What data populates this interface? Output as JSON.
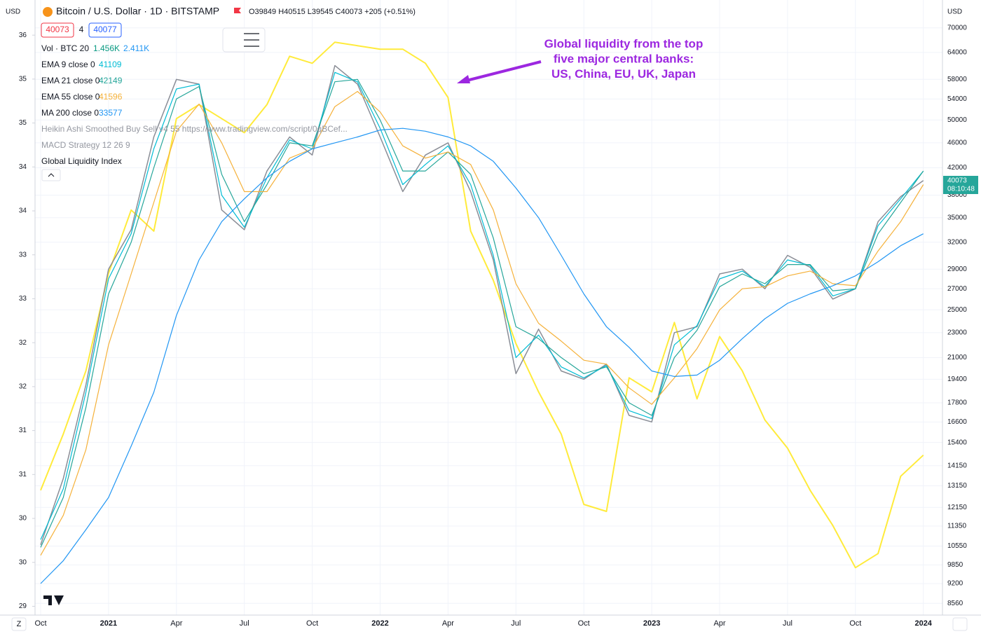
{
  "chart_data": {
    "type": "line",
    "title": "Bitcoin / U.S. Dollar · 1D · BITSTAMP",
    "ohlc": "O39849 H40515 L39545 C40073 +205 (+0.51%)",
    "sell_price": "40073",
    "spread": "4",
    "buy_price": "40077",
    "currency_right": "USD",
    "currency_left": "USD",
    "zoom_button": "Z",
    "last_price_label": "40073",
    "countdown": "08:10:48",
    "legend_extra": [
      {
        "text": "Vol · BTC 20",
        "v1": "1.456K",
        "v2": "2.411K"
      },
      {
        "text": "Heikin Ashi Smoothed Buy Sell v4 55 https://www.tradingview.com/script/0qBCef..."
      },
      {
        "text": "MACD Strategy 12 26 9"
      }
    ],
    "annotation": "Global liquidity from the top five major central banks: US, China, EU, UK, Japan",
    "log_scale": true,
    "grid": true,
    "x": [
      "2020-10",
      "2020-11",
      "2020-12",
      "2021-01",
      "2021-02",
      "2021-03",
      "2021-04",
      "2021-05",
      "2021-06",
      "2021-07",
      "2021-08",
      "2021-09",
      "2021-10",
      "2021-11",
      "2021-12",
      "2022-01",
      "2022-02",
      "2022-03",
      "2022-04",
      "2022-05",
      "2022-06",
      "2022-07",
      "2022-08",
      "2022-09",
      "2022-10",
      "2022-11",
      "2022-12",
      "2023-01",
      "2023-02",
      "2023-03",
      "2023-04",
      "2023-05",
      "2023-06",
      "2023-07",
      "2023-08",
      "2023-09",
      "2023-10",
      "2023-11",
      "2023-12",
      "2024-01"
    ],
    "xticks": [
      {
        "value": "2020-10",
        "label": "Oct"
      },
      {
        "value": "2021-01",
        "label": "2021"
      },
      {
        "value": "2021-04",
        "label": "Apr"
      },
      {
        "value": "2021-07",
        "label": "Jul"
      },
      {
        "value": "2021-10",
        "label": "Oct"
      },
      {
        "value": "2022-01",
        "label": "2022"
      },
      {
        "value": "2022-04",
        "label": "Apr"
      },
      {
        "value": "2022-07",
        "label": "Jul"
      },
      {
        "value": "2022-10",
        "label": "Oct"
      },
      {
        "value": "2023-01",
        "label": "2023"
      },
      {
        "value": "2023-04",
        "label": "Apr"
      },
      {
        "value": "2023-07",
        "label": "Jul"
      },
      {
        "value": "2023-10",
        "label": "Oct"
      },
      {
        "value": "2024-01",
        "label": "2024"
      }
    ],
    "ylim": [
      8200,
      77500
    ],
    "yticks": [
      70000,
      64000,
      58000,
      54000,
      50000,
      46000,
      42000,
      38000,
      35000,
      32000,
      29000,
      27000,
      25000,
      23000,
      21000,
      19400,
      17800,
      16600,
      15400,
      14150,
      13150,
      12150,
      11350,
      10550,
      9850,
      9200,
      8560
    ],
    "y2lim": [
      29.15,
      36.15
    ],
    "y2ticks": [
      {
        "value": 35.75,
        "label": "36"
      },
      {
        "value": 35.25,
        "label": "35"
      },
      {
        "value": 34.75,
        "label": "35"
      },
      {
        "value": 34.25,
        "label": "34"
      },
      {
        "value": 33.75,
        "label": "34"
      },
      {
        "value": 33.25,
        "label": "33"
      },
      {
        "value": 32.75,
        "label": "33"
      },
      {
        "value": 32.25,
        "label": "32"
      },
      {
        "value": 31.75,
        "label": "32"
      },
      {
        "value": 31.25,
        "label": "31"
      },
      {
        "value": 30.75,
        "label": "31"
      },
      {
        "value": 30.25,
        "label": "30"
      },
      {
        "value": 29.75,
        "label": "30"
      },
      {
        "value": 29.25,
        "label": "29"
      }
    ],
    "price": {
      "color": "#8a8d96",
      "values": [
        10600,
        13500,
        19000,
        29000,
        33500,
        47000,
        58000,
        57000,
        36000,
        33500,
        41500,
        47000,
        44000,
        61000,
        57000,
        47000,
        38500,
        44000,
        46000,
        38500,
        30000,
        19800,
        23300,
        20000,
        19400,
        20500,
        17000,
        16600,
        23000,
        23500,
        28500,
        29000,
        27000,
        30500,
        29200,
        26000,
        27000,
        34500,
        37800,
        40073
      ]
    },
    "series": [
      {
        "name": "Global Liquidity Index",
        "color": "#ffeb3b",
        "axis": "y2",
        "values": [
          30.57,
          31.21,
          31.93,
          33.04,
          33.76,
          33.52,
          34.8,
          34.96,
          34.8,
          34.64,
          34.96,
          35.51,
          35.43,
          35.67,
          35.63,
          35.59,
          35.59,
          35.43,
          35.04,
          33.52,
          32.96,
          32.24,
          31.69,
          31.21,
          30.41,
          30.33,
          31.85,
          31.69,
          32.48,
          31.61,
          32.32,
          31.93,
          31.37,
          31.05,
          30.57,
          30.17,
          29.69,
          29.85,
          30.73,
          30.97
        ]
      },
      {
        "name": "EMA 9 close 0",
        "last": "41109",
        "color": "#00bcd4",
        "values": [
          10800,
          13000,
          18500,
          28000,
          33000,
          45000,
          56000,
          57000,
          38000,
          33800,
          40500,
          46500,
          45000,
          59500,
          57500,
          48500,
          39500,
          42500,
          45500,
          39500,
          30500,
          21000,
          22800,
          20300,
          19500,
          20400,
          17300,
          16800,
          22000,
          23600,
          28000,
          28800,
          27200,
          30000,
          29400,
          26300,
          27000,
          34000,
          37500,
          41500
        ]
      },
      {
        "name": "EMA 21 close 0",
        "last": "42149",
        "color": "#26a69a",
        "values": [
          10500,
          12600,
          17500,
          26500,
          32000,
          42000,
          54000,
          56500,
          41000,
          34500,
          39500,
          46000,
          45500,
          57500,
          58000,
          50000,
          41500,
          41500,
          44500,
          41000,
          32500,
          23500,
          22500,
          21000,
          19800,
          20300,
          17800,
          17000,
          21000,
          23200,
          27200,
          28500,
          27500,
          29500,
          29500,
          26800,
          27000,
          33000,
          37000,
          41500
        ]
      },
      {
        "name": "EMA 55 close 0",
        "last": "41596",
        "color": "#f5b13a",
        "values": [
          10200,
          11800,
          15000,
          22000,
          28500,
          37000,
          48000,
          53000,
          46000,
          38500,
          38500,
          43500,
          45000,
          52500,
          55500,
          51500,
          45500,
          43500,
          44500,
          42500,
          36000,
          27500,
          23800,
          22300,
          20800,
          20500,
          18800,
          17700,
          19500,
          21700,
          25000,
          27000,
          27200,
          28300,
          28800,
          27500,
          27300,
          31000,
          34500,
          39500
        ]
      },
      {
        "name": "MA 200 close 0",
        "last": "33577",
        "color": "#2196f3",
        "values": [
          9200,
          10000,
          11200,
          12600,
          15200,
          18500,
          24500,
          30000,
          34500,
          37500,
          40500,
          43000,
          45000,
          46000,
          47000,
          48200,
          48500,
          48000,
          47000,
          45500,
          43000,
          39000,
          35000,
          30500,
          26500,
          23500,
          21800,
          20000,
          19600,
          19700,
          20800,
          22500,
          24200,
          25600,
          26500,
          27300,
          28300,
          29800,
          31600,
          33000
        ]
      }
    ]
  }
}
